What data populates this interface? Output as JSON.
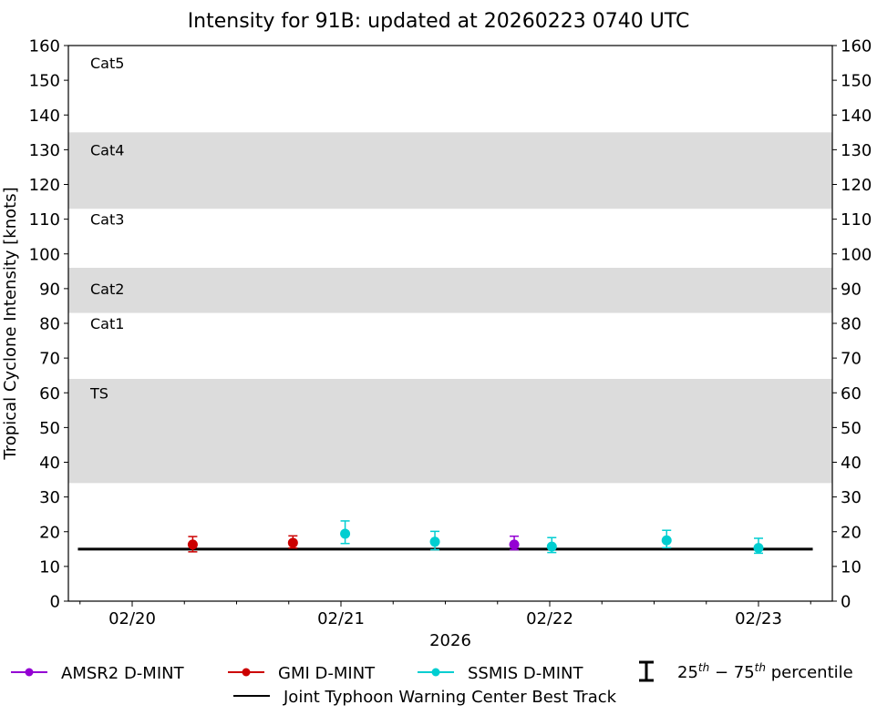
{
  "chart_data": {
    "type": "scatter",
    "title": "Intensity for 91B: updated at 20260223 0740 UTC",
    "xlabel": "2026",
    "ylabel": "Tropical Cyclone Intensity [knots]",
    "ylim": [
      0,
      160
    ],
    "yticks": [
      0,
      10,
      20,
      30,
      40,
      50,
      60,
      70,
      80,
      90,
      100,
      110,
      120,
      130,
      140,
      150,
      160
    ],
    "xticks": [
      {
        "label": "02/20",
        "day": 0
      },
      {
        "label": "02/21",
        "day": 1
      },
      {
        "label": "02/22",
        "day": 2
      },
      {
        "label": "02/23",
        "day": 3
      }
    ],
    "xlim_days": [
      -0.31,
      3.35
    ],
    "minor_tick_hours": 6,
    "grid": false,
    "category_bands": [
      {
        "label": "TS",
        "low": 34,
        "high": 64,
        "shaded": true,
        "label_y": 60
      },
      {
        "label": "Cat1",
        "low": 64,
        "high": 83,
        "shaded": false,
        "label_y": 80
      },
      {
        "label": "Cat2",
        "low": 83,
        "high": 96,
        "shaded": true,
        "label_y": 90
      },
      {
        "label": "Cat3",
        "low": 96,
        "high": 113,
        "shaded": false,
        "label_y": 110
      },
      {
        "label": "Cat4",
        "low": 113,
        "high": 135,
        "shaded": true,
        "label_y": 130
      },
      {
        "label": "Cat5",
        "low": 135,
        "high": 160,
        "shaded": false,
        "label_y": 155
      }
    ],
    "series": [
      {
        "name": "AMSR2 D-MINT",
        "color": "#9400d3",
        "points": [
          {
            "day": 1.83,
            "value": 16.3,
            "p25": 14.8,
            "p75": 18.7
          }
        ]
      },
      {
        "name": "GMI D-MINT",
        "color": "#cc0000",
        "points": [
          {
            "day": 0.29,
            "value": 16.3,
            "p25": 14.2,
            "p75": 18.6
          },
          {
            "day": 0.77,
            "value": 16.8,
            "p25": 15.3,
            "p75": 18.8
          }
        ]
      },
      {
        "name": "SSMIS D-MINT",
        "color": "#00ced1",
        "points": [
          {
            "day": 1.02,
            "value": 19.4,
            "p25": 16.6,
            "p75": 23.1
          },
          {
            "day": 1.45,
            "value": 17.1,
            "p25": 14.8,
            "p75": 20.1
          },
          {
            "day": 2.01,
            "value": 15.7,
            "p25": 14.0,
            "p75": 18.3
          },
          {
            "day": 2.56,
            "value": 17.5,
            "p25": 15.4,
            "p75": 20.4
          },
          {
            "day": 3.0,
            "value": 15.3,
            "p25": 13.8,
            "p75": 18.1
          }
        ]
      },
      {
        "name": "Joint Typhoon Warning Center Best Track",
        "color": "#000000",
        "type": "line",
        "x_days": [
          -0.26,
          3.26
        ],
        "values": [
          15,
          15
        ]
      }
    ],
    "legend": {
      "position": "bottom",
      "entries": [
        {
          "label": "AMSR2 D-MINT",
          "color": "#9400d3",
          "kind": "marker-line"
        },
        {
          "label": "GMI D-MINT",
          "color": "#cc0000",
          "kind": "marker-line"
        },
        {
          "label": "SSMIS D-MINT",
          "color": "#00ced1",
          "kind": "marker-line"
        },
        {
          "label": "25th – 75th percentile",
          "color": "#000000",
          "kind": "errorbar"
        },
        {
          "label": "Joint Typhoon Warning Center Best Track",
          "color": "#000000",
          "kind": "line"
        }
      ]
    }
  },
  "legend_text": {
    "amsr2": "AMSR2 D-MINT",
    "gmi": "GMI D-MINT",
    "ssmis": "SSMIS D-MINT",
    "pct_a": "25",
    "pct_sup_a": "th",
    "pct_dash": " − 75",
    "pct_sup_b": "th",
    "pct_tail": " percentile",
    "best_track": "Joint Typhoon Warning Center Best Track"
  },
  "colors": {
    "band": "#dcdcdc",
    "amsr2": "#9400d3",
    "gmi": "#cc0000",
    "ssmis": "#00ced1",
    "axis": "#000000"
  }
}
